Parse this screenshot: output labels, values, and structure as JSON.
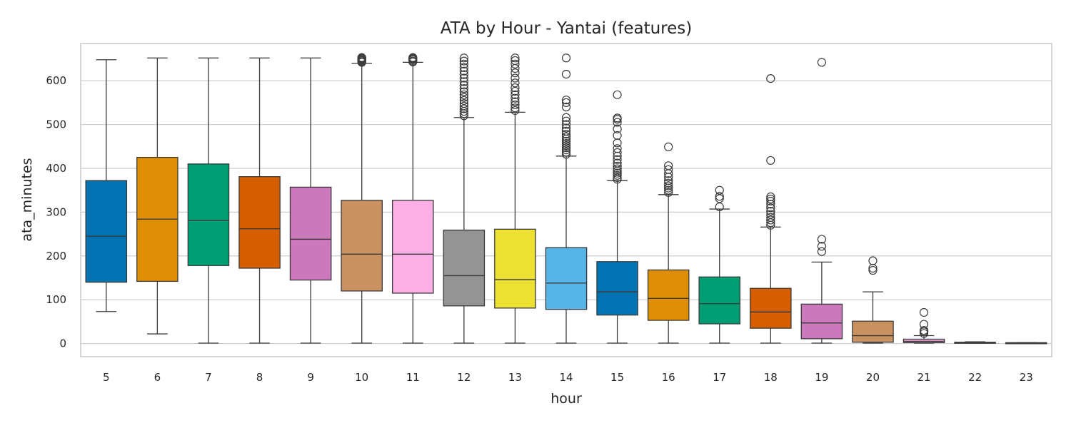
{
  "chart_data": {
    "type": "box",
    "title": "ATA by Hour - Yantai (features)",
    "xlabel": "hour",
    "ylabel": "ata_minutes",
    "ylim": [
      -30,
      685
    ],
    "yticks": [
      0,
      100,
      200,
      300,
      400,
      500,
      600
    ],
    "grid": true,
    "palette": [
      "#0173b2",
      "#de8f05",
      "#029e73",
      "#d55e00",
      "#cc78bc",
      "#ca9161",
      "#fbafe4",
      "#949494",
      "#ece133",
      "#56b4e9"
    ],
    "categories": [
      "5",
      "6",
      "7",
      "8",
      "9",
      "10",
      "11",
      "12",
      "13",
      "14",
      "15",
      "16",
      "17",
      "18",
      "19",
      "20",
      "21",
      "22",
      "23"
    ],
    "boxes": [
      {
        "min": 73,
        "q1": 140,
        "median": 245,
        "q3": 372,
        "max": 648,
        "fliers": []
      },
      {
        "min": 22,
        "q1": 142,
        "median": 284,
        "q3": 425,
        "max": 652,
        "fliers": []
      },
      {
        "min": 1,
        "q1": 178,
        "median": 281,
        "q3": 410,
        "max": 652,
        "fliers": []
      },
      {
        "min": 1,
        "q1": 172,
        "median": 262,
        "q3": 381,
        "max": 652,
        "fliers": []
      },
      {
        "min": 1,
        "q1": 145,
        "median": 238,
        "q3": 357,
        "max": 652,
        "fliers": []
      },
      {
        "min": 1,
        "q1": 120,
        "median": 204,
        "q3": 327,
        "max": 640,
        "fliers": [
          642,
          644,
          646,
          648,
          650,
          651,
          652,
          653
        ]
      },
      {
        "min": 1,
        "q1": 115,
        "median": 204,
        "q3": 327,
        "max": 642,
        "fliers": [
          643,
          645,
          648,
          650,
          652,
          653
        ]
      },
      {
        "min": 1,
        "q1": 86,
        "median": 155,
        "q3": 259,
        "max": 516,
        "fliers": [
          520,
          525,
          530,
          536,
          542,
          548,
          555,
          562,
          568,
          575,
          582,
          590,
          598,
          606,
          614,
          622,
          630,
          638,
          645,
          652
        ]
      },
      {
        "min": 1,
        "q1": 81,
        "median": 146,
        "q3": 261,
        "max": 528,
        "fliers": [
          532,
          538,
          545,
          552,
          560,
          568,
          576,
          584,
          595,
          606,
          618,
          628,
          638,
          646,
          652
        ]
      },
      {
        "min": 1,
        "q1": 78,
        "median": 138,
        "q3": 219,
        "max": 428,
        "fliers": [
          432,
          437,
          442,
          447,
          452,
          457,
          462,
          467,
          472,
          478,
          485,
          492,
          500,
          508,
          516,
          540,
          550,
          556,
          615,
          652
        ]
      },
      {
        "min": 1,
        "q1": 65,
        "median": 118,
        "q3": 187,
        "max": 372,
        "fliers": [
          375,
          379,
          384,
          389,
          394,
          399,
          405,
          412,
          420,
          428,
          436,
          445,
          458,
          475,
          490,
          505,
          512,
          515,
          568
        ]
      },
      {
        "min": 1,
        "q1": 53,
        "median": 103,
        "q3": 168,
        "max": 340,
        "fliers": [
          345,
          350,
          355,
          360,
          366,
          372,
          380,
          388,
          397,
          406,
          449
        ]
      },
      {
        "min": 1,
        "q1": 45,
        "median": 91,
        "q3": 152,
        "max": 307,
        "fliers": [
          312,
          331,
          336,
          350
        ]
      },
      {
        "min": 1,
        "q1": 35,
        "median": 72,
        "q3": 126,
        "max": 266,
        "fliers": [
          270,
          276,
          282,
          288,
          295,
          302,
          310,
          318,
          325,
          330,
          335,
          418,
          605
        ]
      },
      {
        "min": 1,
        "q1": 11,
        "median": 47,
        "q3": 90,
        "max": 186,
        "fliers": [
          210,
          222,
          238,
          642
        ]
      },
      {
        "min": 1,
        "q1": 3,
        "median": 18,
        "q3": 51,
        "max": 118,
        "fliers": [
          167,
          172,
          189
        ]
      },
      {
        "min": 1,
        "q1": 2,
        "median": 5,
        "q3": 10,
        "max": 18,
        "fliers": [
          23,
          27,
          30,
          44,
          71
        ]
      },
      {
        "min": 1,
        "q1": 1,
        "median": 2,
        "q3": 3,
        "max": 4,
        "fliers": []
      },
      {
        "min": 1,
        "q1": 1,
        "median": 1,
        "q3": 2,
        "max": 2,
        "fliers": []
      }
    ]
  }
}
